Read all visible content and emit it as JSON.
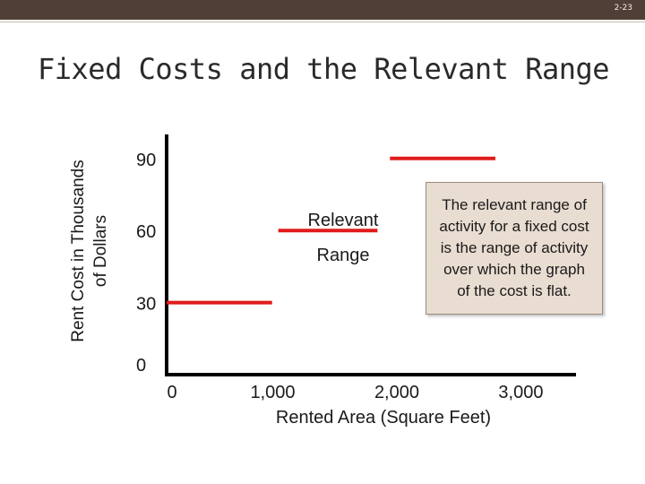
{
  "slide": {
    "number": "2-23",
    "title": "Fixed Costs and the Relevant Range"
  },
  "colors": {
    "series": "#e01b1b",
    "axis": "#000000",
    "callout_bg": "#e9dcd1",
    "header": "#4f3f36"
  },
  "chart_data": {
    "type": "line",
    "title": "Fixed Costs and the Relevant Range",
    "xlabel": "Rented Area (Square Feet)",
    "ylabel_lines": [
      "Rent Cost in Thousands",
      "of Dollars"
    ],
    "xlim": [
      0,
      3300
    ],
    "ylim": [
      0,
      100
    ],
    "x_ticks": [
      {
        "value": 0,
        "label": "0"
      },
      {
        "value": 1000,
        "label": "1,000"
      },
      {
        "value": 2000,
        "label": "2,000"
      },
      {
        "value": 3000,
        "label": "3,000"
      }
    ],
    "y_ticks": [
      {
        "value": 0,
        "label": "0"
      },
      {
        "value": 30,
        "label": "30"
      },
      {
        "value": 60,
        "label": "60"
      },
      {
        "value": 90,
        "label": "90"
      }
    ],
    "segments": [
      {
        "x": [
          0,
          850
        ],
        "y": 30
      },
      {
        "x": [
          900,
          1700
        ],
        "y": 60
      },
      {
        "x": [
          1800,
          2650
        ],
        "y": 90
      }
    ],
    "annotations": [
      {
        "text_lines": [
          "Relevant",
          "Range"
        ]
      }
    ],
    "callout": "The relevant range of activity for a fixed cost is the range of activity over which the graph of the cost is flat."
  }
}
